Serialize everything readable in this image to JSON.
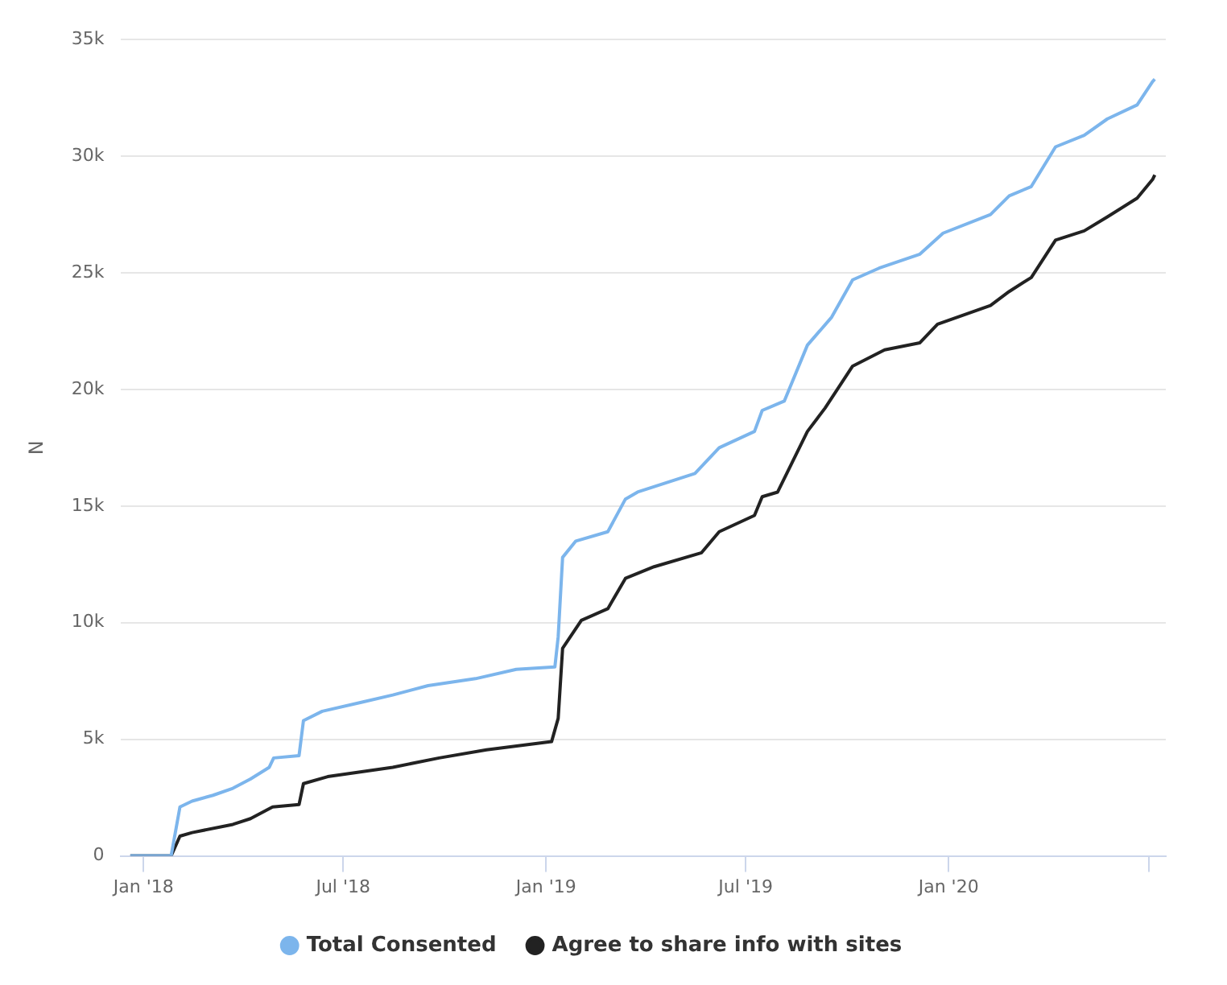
{
  "chart_data": {
    "type": "line",
    "ylabel": "N",
    "xlim": [
      "2017-12-11",
      "2020-07-16"
    ],
    "xticks": [
      {
        "value": "2018-01-01",
        "label": "Jan '18"
      },
      {
        "value": "2018-07-01",
        "label": "Jul '18"
      },
      {
        "value": "2019-01-01",
        "label": "Jan '19"
      },
      {
        "value": "2019-07-01",
        "label": "Jul '19"
      },
      {
        "value": "2020-01-01",
        "label": "Jan '20"
      },
      {
        "value": "2020-07-01",
        "label": null
      }
    ],
    "ylim": [
      0,
      35000
    ],
    "yticks": [
      {
        "value": 0,
        "label": "0"
      },
      {
        "value": 5000,
        "label": "5k"
      },
      {
        "value": 10000,
        "label": "10k"
      },
      {
        "value": 15000,
        "label": "15k"
      },
      {
        "value": 20000,
        "label": "20k"
      },
      {
        "value": 25000,
        "label": "25k"
      },
      {
        "value": 30000,
        "label": "30k"
      },
      {
        "value": 35000,
        "label": "35k"
      }
    ],
    "grid": "y",
    "legend": "bottom",
    "line_style": "solid",
    "series": [
      {
        "name": "Total Consented",
        "color": "#7cb5ec",
        "x": [
          "2017-12-20",
          "2018-01-26",
          "2018-02-03",
          "2018-02-14",
          "2018-03-05",
          "2018-03-23",
          "2018-04-08",
          "2018-04-25",
          "2018-04-29",
          "2018-05-22",
          "2018-05-26",
          "2018-06-12",
          "2018-07-19",
          "2018-08-15",
          "2018-09-16",
          "2018-10-29",
          "2018-12-05",
          "2019-01-09",
          "2019-01-12",
          "2019-01-16",
          "2019-01-28",
          "2019-02-26",
          "2019-03-14",
          "2019-03-25",
          "2019-05-16",
          "2019-06-07",
          "2019-07-09",
          "2019-07-16",
          "2019-08-05",
          "2019-08-26",
          "2019-09-17",
          "2019-10-06",
          "2019-10-30",
          "2019-12-06",
          "2019-12-27",
          "2020-02-08",
          "2020-02-25",
          "2020-03-16",
          "2020-04-07",
          "2020-05-03",
          "2020-05-24",
          "2020-06-20",
          "2020-07-04",
          "2020-07-06"
        ],
        "values": [
          0,
          0,
          2100,
          2350,
          2600,
          2900,
          3300,
          3800,
          4200,
          4300,
          5800,
          6200,
          6600,
          6900,
          7300,
          7600,
          8000,
          8100,
          9400,
          12800,
          13500,
          13900,
          15300,
          15600,
          16400,
          17500,
          18200,
          19100,
          19500,
          21900,
          23100,
          24700,
          25200,
          25800,
          26700,
          27500,
          28300,
          28700,
          30400,
          30900,
          31600,
          32200,
          33200,
          33300
        ]
      },
      {
        "name": "Agree to share info with sites",
        "color": "#222222",
        "x": [
          "2017-12-20",
          "2018-01-26",
          "2018-02-03",
          "2018-02-14",
          "2018-03-23",
          "2018-04-08",
          "2018-04-28",
          "2018-05-22",
          "2018-05-26",
          "2018-06-17",
          "2018-08-15",
          "2018-09-26",
          "2018-11-08",
          "2019-01-06",
          "2019-01-12",
          "2019-01-16",
          "2019-02-02",
          "2019-02-26",
          "2019-03-14",
          "2019-04-09",
          "2019-05-22",
          "2019-06-07",
          "2019-07-09",
          "2019-07-16",
          "2019-07-30",
          "2019-08-26",
          "2019-09-11",
          "2019-10-06",
          "2019-11-04",
          "2019-12-06",
          "2019-12-22",
          "2020-02-08",
          "2020-02-25",
          "2020-03-16",
          "2020-04-07",
          "2020-05-03",
          "2020-05-24",
          "2020-06-20",
          "2020-07-04",
          "2020-07-06"
        ],
        "values": [
          0,
          0,
          850,
          1000,
          1350,
          1600,
          2100,
          2200,
          3100,
          3400,
          3800,
          4200,
          4550,
          4900,
          5900,
          8900,
          10100,
          10600,
          11900,
          12400,
          13000,
          13900,
          14600,
          15400,
          15600,
          18200,
          19200,
          21000,
          21700,
          22000,
          22800,
          23600,
          24200,
          24800,
          26400,
          26800,
          27400,
          28200,
          29000,
          29200
        ]
      }
    ]
  }
}
